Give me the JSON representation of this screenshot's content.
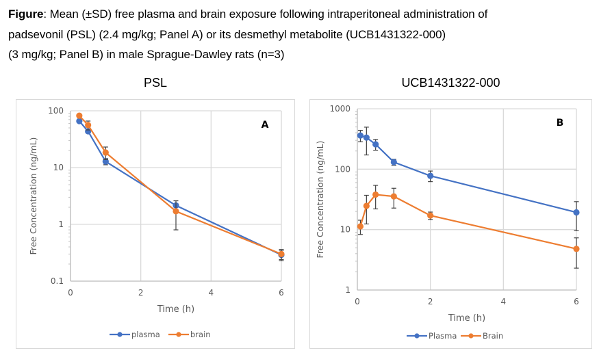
{
  "caption": {
    "bold": "Figure",
    "line1": ": Mean (±SD) free plasma and brain exposure following intraperitoneal administration of",
    "line2": "padsevonil (PSL) (2.4 mg/kg; Panel A) or its desmethyl metabolite (UCB1431322-000)",
    "line3": "(3 mg/kg; Panel B) in male Sprague-Dawley rats (n=3)"
  },
  "colors": {
    "plasma": "#4472c4",
    "brain": "#ed7d31",
    "grid": "#d9d9d9",
    "errorbar": "#404040"
  },
  "chart_data": [
    {
      "type": "line",
      "title": "PSL",
      "panel_label": "A",
      "xlabel": "Time (h)",
      "ylabel": "Free Concentration (ng/mL)",
      "yscale": "log",
      "xlim": [
        0,
        6
      ],
      "ylim": [
        0.1,
        100
      ],
      "xticks": [
        "0",
        "2",
        "4",
        "6"
      ],
      "yticks": [
        "0.1",
        "1",
        "10",
        "100"
      ],
      "grid": true,
      "legend_position": "bottom",
      "series": [
        {
          "name": "plasma",
          "color_key": "plasma",
          "x": [
            0.25,
            0.5,
            1,
            3,
            6
          ],
          "y": [
            66,
            43.5,
            12.8,
            2.15,
            0.29
          ],
          "sd": [
            null,
            null,
            1.6,
            null,
            0.06
          ]
        },
        {
          "name": "brain",
          "color_key": "brain",
          "x": [
            0.25,
            0.5,
            1,
            3,
            6
          ],
          "y": [
            82,
            56,
            18.4,
            1.7,
            0.3
          ],
          "sd": [
            null,
            10,
            4.6,
            0.9,
            0.06
          ]
        }
      ]
    },
    {
      "type": "line",
      "title": "UCB1431322-000",
      "panel_label": "B",
      "xlabel": "Time (h)",
      "ylabel": "Free Concentration (ng/mL)",
      "yscale": "log",
      "xlim": [
        0,
        6
      ],
      "ylim": [
        1,
        1000
      ],
      "xticks": [
        "0",
        "2",
        "4",
        "6"
      ],
      "yticks": [
        "1",
        "10",
        "100",
        "1000"
      ],
      "grid": true,
      "legend_position": "bottom",
      "series": [
        {
          "name": "Plasma",
          "color_key": "plasma",
          "x": [
            0.083,
            0.25,
            0.5,
            1,
            2,
            6
          ],
          "y": [
            361,
            334,
            258,
            131,
            77.6,
            19.3
          ],
          "sd": [
            77,
            162,
            52,
            15,
            15.5,
            9.7
          ]
        },
        {
          "name": "Brain",
          "color_key": "brain",
          "x": [
            0.083,
            0.25,
            0.5,
            1,
            2,
            6
          ],
          "y": [
            11.3,
            24.7,
            38,
            35.5,
            17.1,
            4.8
          ],
          "sd": [
            3,
            12.3,
            16,
            12.8,
            2.4,
            2.5
          ]
        }
      ]
    }
  ]
}
